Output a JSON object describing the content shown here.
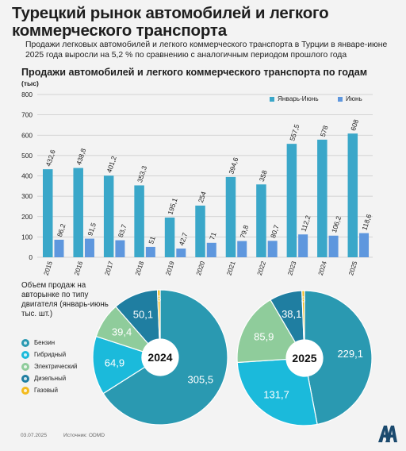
{
  "header": {
    "title": "Турецкий рынок автомобилей и легкого коммерческого транспорта",
    "subtitle": "Продажи легковых автомобилей и легкого коммерческого транспорта в Турции в январе-июне 2025 года выросли на 5,2 % по сравнению с аналогичным периодом прошлого года"
  },
  "colors": {
    "jan_jun": "#3aa7c9",
    "june": "#5e97de"
  },
  "chart_data": [
    {
      "type": "bar",
      "title": "Продажи автомобилей и легкого коммерческого транспорта по годам",
      "ylabel": "(тыс)",
      "ylim": [
        0,
        800
      ],
      "yticks": [
        "0",
        "100",
        "200",
        "300",
        "400",
        "500",
        "600",
        "700",
        "800"
      ],
      "grid": true,
      "legend_position": "top-right",
      "categories": [
        "2015",
        "2016",
        "2017",
        "2018",
        "2019",
        "2020",
        "2021",
        "2022",
        "2023",
        "2024",
        "2025"
      ],
      "series": [
        {
          "name": "Январь-Июнь",
          "values": [
            432.6,
            438.8,
            401.2,
            353.3,
            195.1,
            254,
            394.6,
            358,
            557.5,
            578,
            608
          ],
          "labels": [
            "432,6",
            "438,8",
            "401,2",
            "353,3",
            "195,1",
            "254",
            "394,6",
            "358",
            "557,5",
            "578",
            "608"
          ]
        },
        {
          "name": "Июнь",
          "values": [
            86.2,
            91.5,
            83.7,
            51,
            42.7,
            71,
            79.8,
            80.7,
            112.2,
            106.2,
            118.6
          ],
          "labels": [
            "86,2",
            "91,5",
            "83,7",
            "51",
            "42,7",
            "71",
            "79,8",
            "80,7",
            "112,2",
            "106,2",
            "118,6"
          ]
        }
      ]
    },
    {
      "type": "pie",
      "title": "2024",
      "caption": "Объем продаж на авторынке по типу двигателя (январь-июнь тыс. шт.)",
      "categories": [
        "Бензин",
        "Гибридный",
        "Электрический",
        "Дизельный",
        "Газовый"
      ],
      "values": [
        305.5,
        64.9,
        39.4,
        50.1,
        3
      ],
      "labels": [
        "305,5",
        "64,9",
        "39,4",
        "50,1",
        "3"
      ]
    },
    {
      "type": "pie",
      "title": "2025",
      "categories": [
        "Бензин",
        "Гибридный",
        "Электрический",
        "Дизельный",
        "Газовый"
      ],
      "values": [
        229.1,
        131.7,
        85.9,
        38.1,
        3
      ],
      "labels": [
        "229,1",
        "131,7",
        "85,9",
        "38,1",
        "3"
      ]
    }
  ],
  "engine_types": [
    {
      "label": "Бензин",
      "color": "#2a99b1"
    },
    {
      "label": "Гибридный",
      "color": "#1bbadb"
    },
    {
      "label": "Электрический",
      "color": "#8fcc9b"
    },
    {
      "label": "Дизельный",
      "color": "#1f7ea1"
    },
    {
      "label": "Газовый",
      "color": "#f3ba1c"
    }
  ],
  "footer": {
    "date": "03.07.2025",
    "source": "Источник: ODMD"
  },
  "logo": {
    "icon": "aa-agency-logo"
  }
}
